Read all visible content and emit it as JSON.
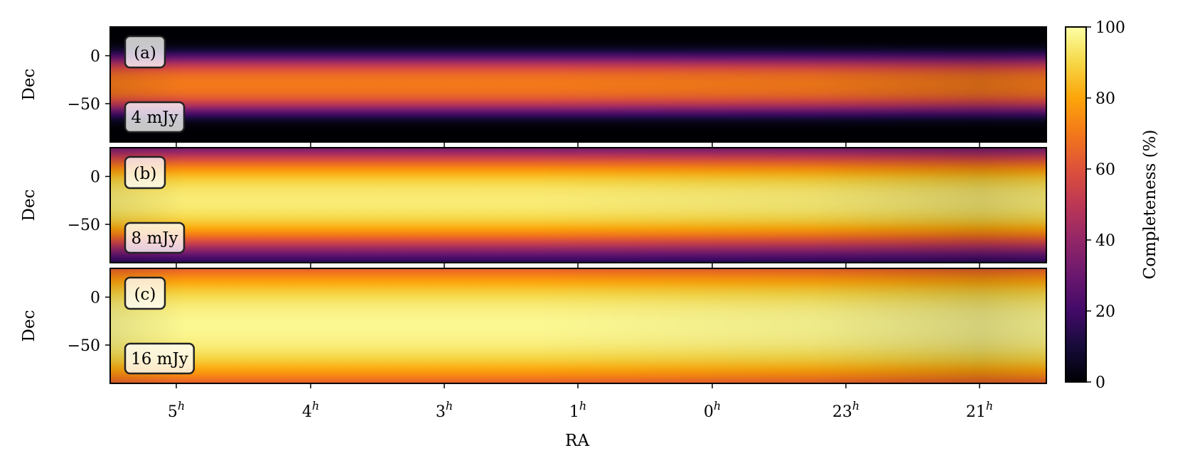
{
  "chart_data": {
    "type": "heatmap",
    "xlabel": "RA",
    "x_ticks": [
      {
        "hour": "5",
        "sup": "h"
      },
      {
        "hour": "4",
        "sup": "h"
      },
      {
        "hour": "3",
        "sup": "h"
      },
      {
        "hour": "1",
        "sup": "h"
      },
      {
        "hour": "0",
        "sup": "h"
      },
      {
        "hour": "23",
        "sup": "h"
      },
      {
        "hour": "21",
        "sup": "h"
      }
    ],
    "ylabel": "Dec",
    "y_ticks": [
      0,
      -50
    ],
    "ylim": [
      -90,
      30
    ],
    "colorbar": {
      "label": "Completeness (%)",
      "range": [
        0,
        100
      ],
      "ticks": [
        0,
        20,
        40,
        60,
        80,
        100
      ],
      "colormap": "inferno"
    },
    "panels": [
      {
        "panel_label": "(a)",
        "flux_label": "4 mJy",
        "peak_completeness": 70,
        "peak_dec": -30,
        "band_width_dec": 30
      },
      {
        "panel_label": "(b)",
        "flux_label": "8 mJy",
        "peak_completeness": 95,
        "peak_dec": -25,
        "band_width_dec": 55
      },
      {
        "panel_label": "(c)",
        "flux_label": "16 mJy",
        "peak_completeness": 98,
        "peak_dec": -30,
        "band_width_dec": 80
      }
    ]
  }
}
